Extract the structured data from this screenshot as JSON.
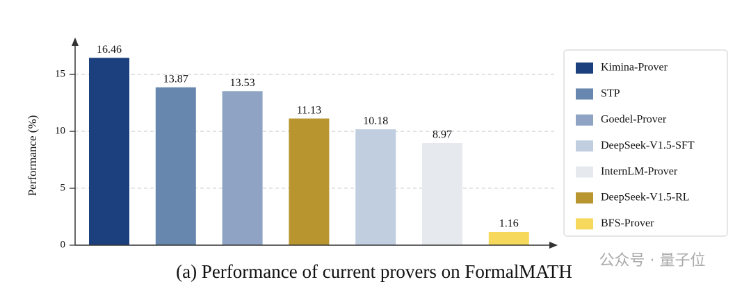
{
  "chart_data": {
    "type": "bar",
    "title": "(a) Performance of current provers on FormalMATH",
    "y_label": "Performance (%)",
    "categories": [
      "Kimina-Prover",
      "STP",
      "Goedel-Prover",
      "DeepSeek-V1.5-RL",
      "DeepSeek-V1.5-SFT",
      "InternLM-Prover",
      "BFS-Prover"
    ],
    "values": [
      16.46,
      13.87,
      13.53,
      11.13,
      10.18,
      8.97,
      1.16
    ],
    "colors": [
      "#1c3f7d",
      "#6787af",
      "#8fa4c4",
      "#b8952f",
      "#c0cedf",
      "#e6eaef",
      "#f6d85c"
    ],
    "legend_order": [
      0,
      1,
      2,
      4,
      5,
      3,
      6
    ],
    "ylim": [
      0,
      18
    ],
    "yticks": [
      0,
      5,
      10,
      15
    ],
    "grid": true,
    "legend": "right",
    "watermark": "公众号 · 量子位"
  }
}
